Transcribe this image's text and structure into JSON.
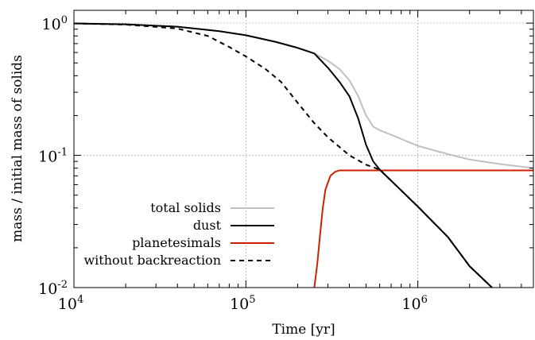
{
  "chart_data": {
    "type": "line",
    "title": "",
    "xlabel": "Time [yr]",
    "ylabel": "mass / initial mass of solids",
    "xscale": "log",
    "yscale": "log",
    "xlim": [
      10000,
      4700000
    ],
    "ylim": [
      0.01,
      1.25
    ],
    "grid": true,
    "legend_position": "bottom-left",
    "x_ticks": [
      {
        "value": 10000,
        "base": "10",
        "exp": "4"
      },
      {
        "value": 100000,
        "base": "10",
        "exp": "5"
      },
      {
        "value": 1000000,
        "base": "10",
        "exp": "6"
      }
    ],
    "y_ticks": [
      {
        "value": 0.01,
        "base": "10",
        "exp": "-2"
      },
      {
        "value": 0.1,
        "base": "10",
        "exp": "-1"
      },
      {
        "value": 1,
        "base": "10",
        "exp": "0"
      }
    ],
    "series": [
      {
        "name": "total solids",
        "color": "#c0c0c0",
        "dash": "solid",
        "points": [
          [
            10000,
            0.995
          ],
          [
            20000,
            0.98
          ],
          [
            40000,
            0.94
          ],
          [
            70000,
            0.87
          ],
          [
            100000,
            0.81
          ],
          [
            150000,
            0.72
          ],
          [
            200000,
            0.65
          ],
          [
            250000,
            0.59
          ],
          [
            300000,
            0.52
          ],
          [
            350000,
            0.45
          ],
          [
            400000,
            0.37
          ],
          [
            450000,
            0.28
          ],
          [
            500000,
            0.2
          ],
          [
            550000,
            0.165
          ],
          [
            600000,
            0.155
          ],
          [
            700000,
            0.143
          ],
          [
            1000000,
            0.118
          ],
          [
            1500000,
            0.102
          ],
          [
            2000000,
            0.093
          ],
          [
            3000000,
            0.086
          ],
          [
            4700000,
            0.08
          ]
        ]
      },
      {
        "name": "dust",
        "color": "#000000",
        "dash": "solid",
        "points": [
          [
            10000,
            0.995
          ],
          [
            20000,
            0.98
          ],
          [
            40000,
            0.94
          ],
          [
            70000,
            0.87
          ],
          [
            100000,
            0.81
          ],
          [
            150000,
            0.72
          ],
          [
            200000,
            0.65
          ],
          [
            250000,
            0.59
          ],
          [
            300000,
            0.46
          ],
          [
            350000,
            0.36
          ],
          [
            400000,
            0.28
          ],
          [
            450000,
            0.19
          ],
          [
            500000,
            0.12
          ],
          [
            550000,
            0.09
          ],
          [
            600000,
            0.078
          ],
          [
            1000000,
            0.041
          ],
          [
            1500000,
            0.024
          ],
          [
            2000000,
            0.0145
          ],
          [
            2700000,
            0.01
          ]
        ]
      },
      {
        "name": "planetesimals",
        "color": "#cc2200",
        "dash": "solid",
        "points": [
          [
            250000,
            0.01
          ],
          [
            260000,
            0.015
          ],
          [
            270000,
            0.025
          ],
          [
            280000,
            0.04
          ],
          [
            290000,
            0.055
          ],
          [
            310000,
            0.07
          ],
          [
            330000,
            0.075
          ],
          [
            350000,
            0.077
          ],
          [
            400000,
            0.077
          ],
          [
            1000000,
            0.077
          ],
          [
            4700000,
            0.077
          ]
        ]
      },
      {
        "name": "without backreaction",
        "color": "#000000",
        "dash": "dashed",
        "points": [
          [
            10000,
            0.995
          ],
          [
            20000,
            0.975
          ],
          [
            40000,
            0.91
          ],
          [
            60000,
            0.8
          ],
          [
            80000,
            0.66
          ],
          [
            100000,
            0.56
          ],
          [
            130000,
            0.45
          ],
          [
            160000,
            0.36
          ],
          [
            200000,
            0.25
          ],
          [
            250000,
            0.175
          ],
          [
            300000,
            0.137
          ],
          [
            400000,
            0.1
          ],
          [
            500000,
            0.085
          ],
          [
            600000,
            0.078
          ],
          [
            1000000,
            0.041
          ],
          [
            1500000,
            0.024
          ],
          [
            2000000,
            0.0145
          ],
          [
            2700000,
            0.01
          ]
        ]
      }
    ]
  }
}
